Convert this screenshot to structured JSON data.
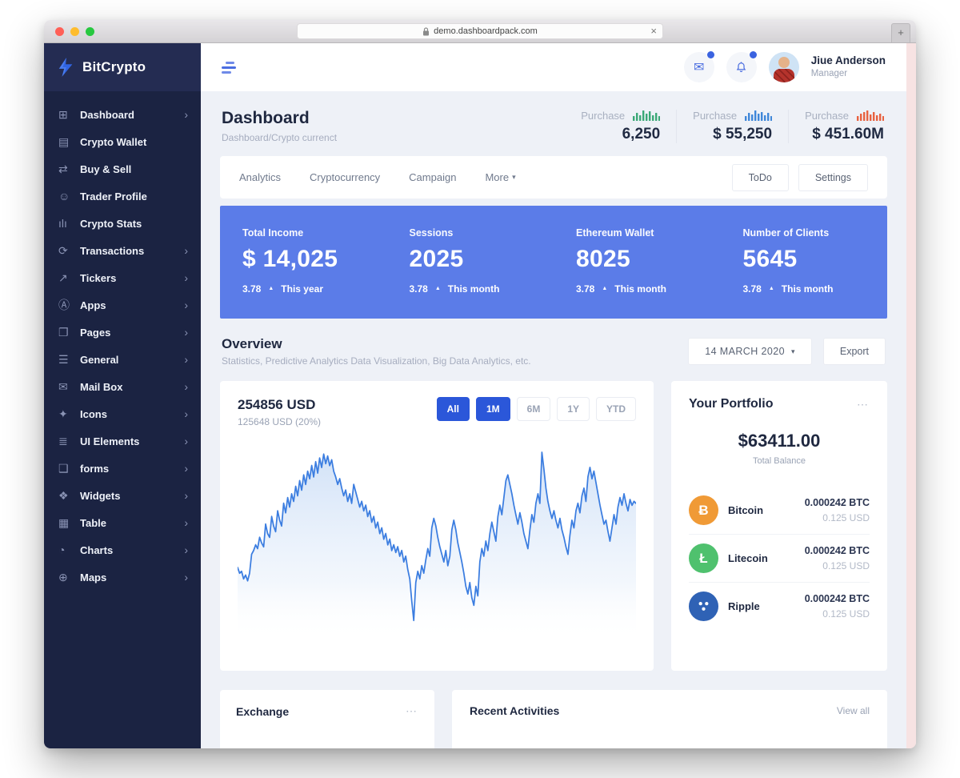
{
  "browser": {
    "url": "demo.dashboardpack.com",
    "close_label": "×",
    "new_tab_label": "+"
  },
  "sidebar": {
    "brand": "BitCrypto",
    "items": [
      {
        "label": "Dashboard",
        "icon": "grid-icon",
        "glyph": "⊞",
        "expandable": true
      },
      {
        "label": "Crypto Wallet",
        "icon": "wallet-icon",
        "glyph": "▤",
        "expandable": false
      },
      {
        "label": "Buy & Sell",
        "icon": "exchange-icon",
        "glyph": "⇄",
        "expandable": false
      },
      {
        "label": "Trader Profile",
        "icon": "person-icon",
        "glyph": "☺",
        "expandable": false
      },
      {
        "label": "Crypto Stats",
        "icon": "stats-icon",
        "glyph": "ılı",
        "expandable": false
      },
      {
        "label": "Transactions",
        "icon": "transactions-icon",
        "glyph": "⟳",
        "expandable": true
      },
      {
        "label": "Tickers",
        "icon": "trend-icon",
        "glyph": "↗",
        "expandable": true
      },
      {
        "label": "Apps",
        "icon": "apps-icon",
        "glyph": "Ⓐ",
        "expandable": true
      },
      {
        "label": "Pages",
        "icon": "pages-icon",
        "glyph": "❐",
        "expandable": true
      },
      {
        "label": "General",
        "icon": "sliders-icon",
        "glyph": "☰",
        "expandable": true
      },
      {
        "label": "Mail Box",
        "icon": "envelope-icon",
        "glyph": "✉",
        "expandable": true
      },
      {
        "label": "Icons",
        "icon": "sparkle-icon",
        "glyph": "✦",
        "expandable": true
      },
      {
        "label": "UI Elements",
        "icon": "layers-icon",
        "glyph": "≣",
        "expandable": true
      },
      {
        "label": "forms",
        "icon": "form-icon",
        "glyph": "❑",
        "expandable": true
      },
      {
        "label": "Widgets",
        "icon": "widget-icon",
        "glyph": "❖",
        "expandable": true
      },
      {
        "label": "Table",
        "icon": "table-icon",
        "glyph": "▦",
        "expandable": true
      },
      {
        "label": "Charts",
        "icon": "pie-icon",
        "glyph": "◔",
        "expandable": true
      },
      {
        "label": "Maps",
        "icon": "globe-icon",
        "glyph": "⊕",
        "expandable": true
      }
    ]
  },
  "header": {
    "user_name": "Jiue Anderson",
    "user_role": "Manager"
  },
  "page": {
    "title": "Dashboard",
    "breadcrumb": "Dashboard/Crypto currenct"
  },
  "purchase_stats": [
    {
      "label": "Purchase",
      "value": "6,250",
      "bar_color": "#3aa876"
    },
    {
      "label": "Purchase",
      "value": "$ 55,250",
      "bar_color": "#3f87d9"
    },
    {
      "label": "Purchase",
      "value": "$ 451.60M",
      "bar_color": "#e8613f"
    }
  ],
  "tabs": {
    "items": [
      "Analytics",
      "Cryptocurrency",
      "Campaign"
    ],
    "more_label": "More",
    "buttons": [
      "ToDo",
      "Settings"
    ]
  },
  "kpi_banner": {
    "bg_color": "#5b7ce8",
    "items": [
      {
        "label": "Total Income",
        "value": "$ 14,025",
        "change": "3.78",
        "period": "This year"
      },
      {
        "label": "Sessions",
        "value": "2025",
        "change": "3.78",
        "period": "This month"
      },
      {
        "label": "Ethereum Wallet",
        "value": "8025",
        "change": "3.78",
        "period": "This month"
      },
      {
        "label": "Number of Clients",
        "value": "5645",
        "change": "3.78",
        "period": "This month"
      }
    ]
  },
  "overview": {
    "title": "Overview",
    "subtitle": "Statistics, Predictive Analytics Data Visualization, Big Data Analytics, etc.",
    "date_label": "14 MARCH 2020",
    "export_label": "Export"
  },
  "chart_card": {
    "value": "254856 USD",
    "subvalue": "125648 USD (20%)",
    "ranges": [
      {
        "label": "All",
        "active": true
      },
      {
        "label": "1M",
        "active": true
      },
      {
        "label": "6M",
        "active": false
      },
      {
        "label": "1Y",
        "active": false
      },
      {
        "label": "YTD",
        "active": false
      }
    ]
  },
  "chart_data": {
    "type": "area",
    "title": "254856 USD",
    "xlabel": "",
    "ylabel": "",
    "ylim": [
      0,
      100
    ],
    "grid": false,
    "legend": "none",
    "line_color": "#3b7de0",
    "fill_color": "#cfe0f7",
    "values": [
      36,
      33,
      34,
      30,
      32,
      29,
      33,
      43,
      45,
      48,
      46,
      52,
      49,
      47,
      59,
      54,
      52,
      63,
      58,
      55,
      66,
      61,
      58,
      70,
      65,
      73,
      68,
      75,
      71,
      79,
      74,
      82,
      77,
      85,
      80,
      87,
      83,
      90,
      84,
      92,
      86,
      94,
      89,
      96,
      91,
      95,
      90,
      93,
      87,
      84,
      80,
      83,
      78,
      74,
      77,
      71,
      75,
      70,
      80,
      76,
      72,
      68,
      71,
      66,
      69,
      63,
      66,
      60,
      63,
      57,
      60,
      54,
      57,
      51,
      54,
      48,
      51,
      45,
      48,
      44,
      47,
      42,
      45,
      39,
      42,
      35,
      30,
      18,
      8,
      28,
      34,
      30,
      37,
      33,
      40,
      46,
      42,
      57,
      62,
      58,
      52,
      47,
      43,
      39,
      45,
      37,
      42,
      56,
      61,
      56,
      49,
      44,
      39,
      33,
      26,
      22,
      28,
      20,
      16,
      26,
      21,
      39,
      46,
      42,
      50,
      45,
      54,
      60,
      55,
      50,
      63,
      69,
      64,
      73,
      82,
      85,
      80,
      75,
      69,
      64,
      59,
      65,
      60,
      54,
      50,
      46,
      56,
      64,
      60,
      70,
      75,
      70,
      97,
      88,
      78,
      71,
      66,
      62,
      66,
      61,
      57,
      62,
      56,
      52,
      47,
      43,
      53,
      61,
      57,
      66,
      70,
      65,
      74,
      78,
      71,
      84,
      89,
      83,
      87,
      81,
      75,
      69,
      64,
      59,
      61,
      55,
      50,
      57,
      64,
      59,
      68,
      73,
      69,
      75,
      70,
      66,
      72,
      69,
      71,
      70
    ]
  },
  "portfolio": {
    "title": "Your Portfolio",
    "menu_dots": "⋯",
    "balance": "$63411.00",
    "balance_label": "Total Balance",
    "coins": [
      {
        "name": "Bitcoin",
        "icon": "bitcoin-icon",
        "glyph": "Ƀ",
        "color": "#f09a36",
        "amount": "0.000242 BTC",
        "usd": "0.125 USD"
      },
      {
        "name": "Litecoin",
        "icon": "litecoin-icon",
        "glyph": "Ł",
        "color": "#4fc16e",
        "amount": "0.000242 BTC",
        "usd": "0.125 USD"
      },
      {
        "name": "Ripple",
        "icon": "ripple-icon",
        "glyph": "",
        "color": "#2f62b5",
        "amount": "0.000242 BTC",
        "usd": "0.125 USD"
      }
    ]
  },
  "bottom": {
    "exchange_title": "Exchange",
    "exchange_dots": "⋯",
    "recent_title": "Recent Activities",
    "view_all": "View all"
  },
  "colors": {
    "sidebar_navy": "#1b2342",
    "brand_band": "#242c52",
    "banner_blue": "#5b7ce8",
    "accent_blue": "#2b57d9",
    "icon_blue": "#4a6de0",
    "badge_blue": "#3b63e0",
    "content_bg": "#eef1f7",
    "pink_strip": "#f7e3e3",
    "traffic_red": "#ff5f57",
    "traffic_yellow": "#febc2e",
    "traffic_green": "#28c840"
  }
}
